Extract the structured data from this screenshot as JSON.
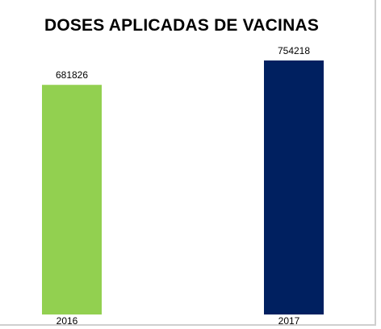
{
  "chart_data": {
    "type": "bar",
    "title": "DOSES APLICADAS DE VACINAS",
    "categories": [
      "2016",
      "2017"
    ],
    "values": [
      681826,
      754218
    ],
    "colors": [
      "#92d050",
      "#002060"
    ],
    "ylim": [
      0,
      754218
    ],
    "grid": false,
    "legend": "none"
  }
}
